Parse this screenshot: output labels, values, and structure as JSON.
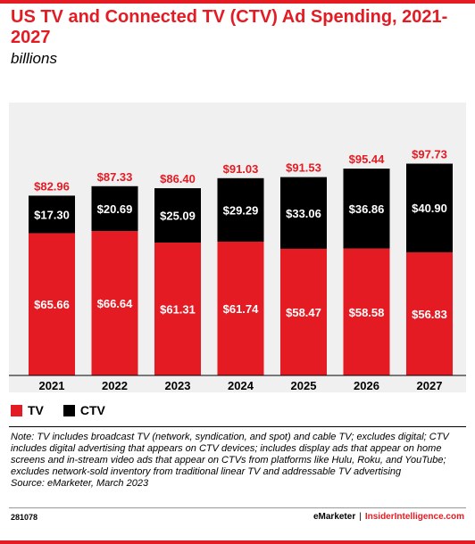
{
  "title": "US TV and Connected TV (CTV) Ad Spending, 2021-2027",
  "subtitle": "billions",
  "colors": {
    "accent": "#e41b23",
    "tv": "#e41b23",
    "ctv": "#000000",
    "plot_bg": "#f0f0f0"
  },
  "legend": {
    "tv_label": "TV",
    "ctv_label": "CTV"
  },
  "note": "Note: TV includes broadcast TV (network, syndication, and spot) and cable TV; excludes digital; CTV includes digital advertising that appears on CTV devices; includes display ads that appear on home screens and in-stream video ads that appear on CTVs from platforms like Hulu, Roku, and YouTube; excludes network-sold inventory from traditional linear TV and addressable TV advertising",
  "source": "Source: eMarketer, March 2023",
  "footer": {
    "code": "281078",
    "brand_left": "eMarketer",
    "separator": "|",
    "brand_right": "InsiderIntelligence.com"
  },
  "chart_data": {
    "type": "bar",
    "stacked": true,
    "categories": [
      "2021",
      "2022",
      "2023",
      "2024",
      "2025",
      "2026",
      "2027"
    ],
    "series": [
      {
        "name": "TV",
        "color": "#e41b23",
        "values": [
          65.66,
          66.64,
          61.31,
          61.74,
          58.47,
          58.58,
          56.83
        ],
        "labels": [
          "$65.66",
          "$66.64",
          "$61.31",
          "$61.74",
          "$58.47",
          "$58.58",
          "$56.83"
        ]
      },
      {
        "name": "CTV",
        "color": "#000000",
        "values": [
          17.3,
          20.69,
          25.09,
          29.29,
          33.06,
          36.86,
          40.9
        ],
        "labels": [
          "$17.30",
          "$20.69",
          "$25.09",
          "$29.29",
          "$33.06",
          "$36.86",
          "$40.90"
        ]
      }
    ],
    "totals": [
      82.96,
      87.33,
      86.4,
      91.03,
      91.53,
      95.44,
      97.73
    ],
    "total_labels": [
      "$82.96",
      "$87.33",
      "$86.40",
      "$91.03",
      "$91.53",
      "$95.44",
      "$97.73"
    ],
    "title": "US TV and Connected TV (CTV) Ad Spending, 2021-2027",
    "ylabel": "billions",
    "ylim": [
      0,
      100
    ],
    "grid": false,
    "legend_position": "bottom-left"
  }
}
